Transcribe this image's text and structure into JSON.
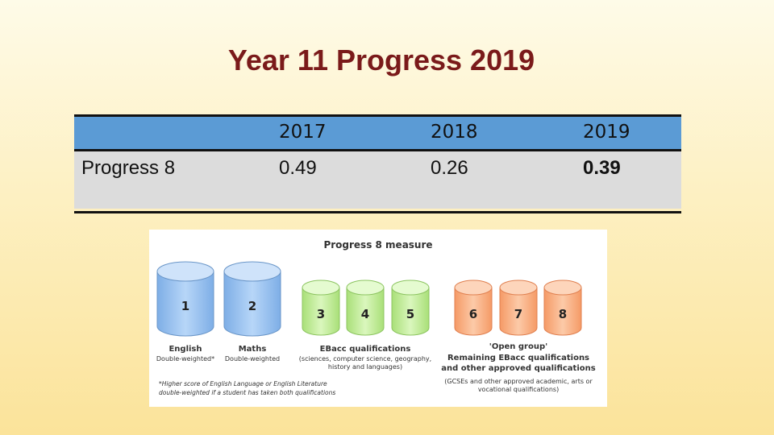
{
  "slide": {
    "title": "Year 11 Progress 2019"
  },
  "table": {
    "headers": [
      "",
      "2017",
      "2018",
      "2019"
    ],
    "row_label": "Progress 8",
    "values": [
      "0.49",
      "0.26",
      "0.39"
    ]
  },
  "diagram": {
    "title": "Progress 8 measure",
    "slots": [
      "1",
      "2",
      "3",
      "4",
      "5",
      "6",
      "7",
      "8"
    ],
    "groups": {
      "english": {
        "label": "English",
        "sub": "Double-weighted*"
      },
      "maths": {
        "label": "Maths",
        "sub": "Double-weighted"
      },
      "ebacc": {
        "label": "EBacc qualifications",
        "sub": "(sciences, computer science, geography, history and languages)"
      },
      "open": {
        "label_line1": "'Open group'",
        "label_line2": "Remaining EBacc qualifications and other approved qualifications",
        "sub": "(GCSEs and other approved academic, arts or vocational qualifications)"
      }
    },
    "footnote": "*Higher score of English Language or English Literature double-weighted if a student has taken both qualifications",
    "colors": {
      "blue": "#9cc3f0",
      "green": "#c6ef9e",
      "orange": "#f9b489"
    }
  }
}
